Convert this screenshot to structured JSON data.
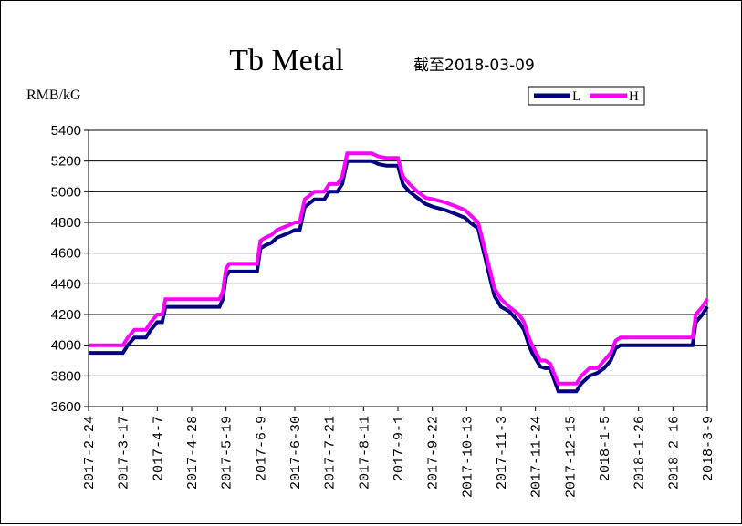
{
  "chart_data": {
    "type": "line",
    "title": "Tb Metal",
    "subtitle": "截至2018-03-09",
    "ylabel": "RMB/kG",
    "xlabel": "",
    "ylim": [
      3600,
      5400
    ],
    "yticks": [
      "5400",
      "5200",
      "5000",
      "4800",
      "4600",
      "4400",
      "4200",
      "4000",
      "3800",
      "3600"
    ],
    "xticks": [
      "2017-2-24",
      "2017-3-17",
      "2017-4-7",
      "2017-4-28",
      "2017-5-19",
      "2017-6-9",
      "2017-6-30",
      "2017-7-21",
      "2017-8-11",
      "2017-9-1",
      "2017-9-22",
      "2017-10-13",
      "2017-11-3",
      "2017-11-24",
      "2017-12-15",
      "2018-1-5",
      "2018-1-26",
      "2018-2-16",
      "2018-3-9"
    ],
    "grid": "horizontal",
    "legend_position": "top-right",
    "colors": {
      "L": "#000080",
      "H": "#ff00ff"
    },
    "series": [
      {
        "name": "L",
        "points": [
          [
            "2017-2-24",
            3950
          ],
          [
            "2017-3-17",
            3950
          ],
          [
            "2017-3-20",
            4000
          ],
          [
            "2017-3-24",
            4050
          ],
          [
            "2017-3-31",
            4050
          ],
          [
            "2017-4-3",
            4100
          ],
          [
            "2017-4-7",
            4150
          ],
          [
            "2017-4-10",
            4150
          ],
          [
            "2017-4-12",
            4250
          ],
          [
            "2017-5-15",
            4250
          ],
          [
            "2017-5-17",
            4300
          ],
          [
            "2017-5-19",
            4450
          ],
          [
            "2017-5-21",
            4480
          ],
          [
            "2017-6-7",
            4480
          ],
          [
            "2017-6-9",
            4630
          ],
          [
            "2017-6-12",
            4650
          ],
          [
            "2017-6-16",
            4670
          ],
          [
            "2017-6-19",
            4700
          ],
          [
            "2017-6-26",
            4730
          ],
          [
            "2017-6-30",
            4750
          ],
          [
            "2017-7-3",
            4750
          ],
          [
            "2017-7-6",
            4900
          ],
          [
            "2017-7-12",
            4950
          ],
          [
            "2017-7-18",
            4950
          ],
          [
            "2017-7-21",
            5000
          ],
          [
            "2017-7-26",
            5000
          ],
          [
            "2017-7-29",
            5050
          ],
          [
            "2017-8-1",
            5200
          ],
          [
            "2017-8-16",
            5200
          ],
          [
            "2017-8-20",
            5180
          ],
          [
            "2017-8-25",
            5170
          ],
          [
            "2017-9-1",
            5170
          ],
          [
            "2017-9-4",
            5050
          ],
          [
            "2017-9-8",
            5000
          ],
          [
            "2017-9-13",
            4960
          ],
          [
            "2017-9-18",
            4920
          ],
          [
            "2017-9-23",
            4900
          ],
          [
            "2017-9-30",
            4880
          ],
          [
            "2017-10-5",
            4860
          ],
          [
            "2017-10-12",
            4830
          ],
          [
            "2017-10-15",
            4800
          ],
          [
            "2017-10-20",
            4760
          ],
          [
            "2017-10-27",
            4450
          ],
          [
            "2017-10-30",
            4320
          ],
          [
            "2017-11-3",
            4250
          ],
          [
            "2017-11-8",
            4220
          ],
          [
            "2017-11-14",
            4150
          ],
          [
            "2017-11-17",
            4100
          ],
          [
            "2017-11-20",
            4000
          ],
          [
            "2017-11-22",
            3950
          ],
          [
            "2017-11-27",
            3860
          ],
          [
            "2017-11-30",
            3850
          ],
          [
            "2017-12-3",
            3850
          ],
          [
            "2017-12-8",
            3700
          ],
          [
            "2017-12-19",
            3700
          ],
          [
            "2017-12-22",
            3750
          ],
          [
            "2017-12-27",
            3800
          ],
          [
            "2018-1-1",
            3820
          ],
          [
            "2018-1-5",
            3850
          ],
          [
            "2018-1-9",
            3900
          ],
          [
            "2018-1-12",
            3980
          ],
          [
            "2018-1-15",
            4000
          ],
          [
            "2018-2-28",
            4000
          ],
          [
            "2018-3-2",
            4150
          ],
          [
            "2018-3-6",
            4200
          ],
          [
            "2018-3-9",
            4250
          ]
        ]
      },
      {
        "name": "H",
        "points": [
          [
            "2017-2-24",
            4000
          ],
          [
            "2017-3-17",
            4000
          ],
          [
            "2017-3-20",
            4050
          ],
          [
            "2017-3-24",
            4100
          ],
          [
            "2017-3-31",
            4100
          ],
          [
            "2017-4-3",
            4150
          ],
          [
            "2017-4-7",
            4200
          ],
          [
            "2017-4-10",
            4200
          ],
          [
            "2017-4-12",
            4300
          ],
          [
            "2017-5-15",
            4300
          ],
          [
            "2017-5-17",
            4350
          ],
          [
            "2017-5-19",
            4500
          ],
          [
            "2017-5-21",
            4530
          ],
          [
            "2017-6-7",
            4530
          ],
          [
            "2017-6-9",
            4680
          ],
          [
            "2017-6-12",
            4700
          ],
          [
            "2017-6-16",
            4720
          ],
          [
            "2017-6-19",
            4750
          ],
          [
            "2017-6-26",
            4780
          ],
          [
            "2017-6-30",
            4800
          ],
          [
            "2017-7-3",
            4800
          ],
          [
            "2017-7-6",
            4950
          ],
          [
            "2017-7-12",
            5000
          ],
          [
            "2017-7-18",
            5000
          ],
          [
            "2017-7-21",
            5050
          ],
          [
            "2017-7-26",
            5050
          ],
          [
            "2017-7-29",
            5100
          ],
          [
            "2017-8-1",
            5250
          ],
          [
            "2017-8-16",
            5250
          ],
          [
            "2017-8-20",
            5230
          ],
          [
            "2017-8-25",
            5220
          ],
          [
            "2017-9-1",
            5220
          ],
          [
            "2017-9-4",
            5100
          ],
          [
            "2017-9-8",
            5050
          ],
          [
            "2017-9-13",
            5000
          ],
          [
            "2017-9-18",
            4960
          ],
          [
            "2017-9-23",
            4950
          ],
          [
            "2017-9-30",
            4930
          ],
          [
            "2017-10-5",
            4910
          ],
          [
            "2017-10-12",
            4880
          ],
          [
            "2017-10-15",
            4850
          ],
          [
            "2017-10-20",
            4800
          ],
          [
            "2017-10-27",
            4500
          ],
          [
            "2017-10-30",
            4370
          ],
          [
            "2017-11-3",
            4300
          ],
          [
            "2017-11-8",
            4250
          ],
          [
            "2017-11-14",
            4200
          ],
          [
            "2017-11-17",
            4150
          ],
          [
            "2017-11-20",
            4050
          ],
          [
            "2017-11-22",
            4000
          ],
          [
            "2017-11-27",
            3900
          ],
          [
            "2017-11-30",
            3900
          ],
          [
            "2017-12-3",
            3880
          ],
          [
            "2017-12-8",
            3750
          ],
          [
            "2017-12-19",
            3750
          ],
          [
            "2017-12-22",
            3800
          ],
          [
            "2017-12-27",
            3850
          ],
          [
            "2018-1-1",
            3850
          ],
          [
            "2018-1-5",
            3900
          ],
          [
            "2018-1-9",
            3950
          ],
          [
            "2018-1-12",
            4030
          ],
          [
            "2018-1-15",
            4050
          ],
          [
            "2018-2-28",
            4050
          ],
          [
            "2018-3-2",
            4200
          ],
          [
            "2018-3-6",
            4250
          ],
          [
            "2018-3-9",
            4300
          ]
        ]
      }
    ]
  }
}
